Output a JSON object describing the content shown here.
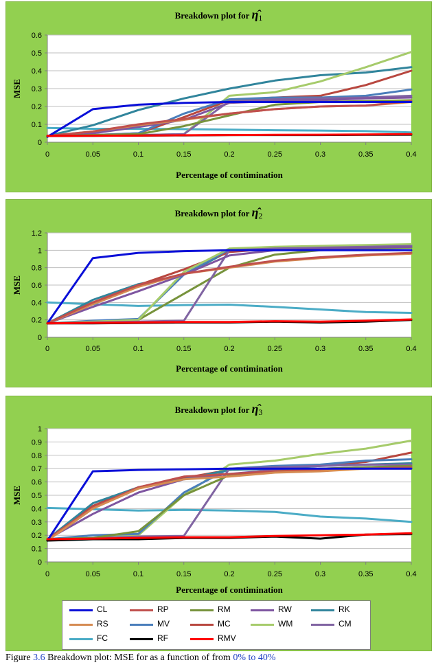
{
  "legend": [
    "CL",
    "RP",
    "RM",
    "RW",
    "RK",
    "RS",
    "MV",
    "MC",
    "WM",
    "CM",
    "FC",
    "RF",
    "RMV"
  ],
  "colors": {
    "CL": "#0A0FD8",
    "RP": "#C0504D",
    "RM": "#77933C",
    "RW": "#7E55A0",
    "RK": "#31859C",
    "RS": "#D58B52",
    "MV": "#4A7EBB",
    "MC": "#B8473F",
    "WM": "#A6CB6B",
    "CM": "#8064A2",
    "FC": "#4BACC6",
    "RF": "#000000",
    "RMV": "#FF0000"
  },
  "caption": {
    "prefix": "Figure",
    "number": "3.6",
    "text": "Breakdown plot: MSE for",
    "mid": "as a function of  from",
    "range": "0% to 40%"
  },
  "chart_data": [
    {
      "type": "line",
      "title": "Breakdown plot for",
      "title_symbol": "η̂",
      "title_sub": "1",
      "xlabel": "Percentage of contimination",
      "ylabel": "MSE",
      "x": [
        0,
        0.05,
        0.1,
        0.15,
        0.2,
        0.25,
        0.3,
        0.35,
        0.4
      ],
      "xticks": [
        "0",
        "0.05",
        "0.1",
        "0.15",
        "0.2",
        "0.25",
        "0.3",
        "0.35",
        "0.4"
      ],
      "ylim": [
        0,
        0.6
      ],
      "yticks": [
        "0",
        "0.1",
        "0.2",
        "0.3",
        "0.4",
        "0.5",
        "0.6"
      ],
      "series": [
        {
          "name": "FC",
          "values": [
            0.08,
            0.075,
            0.075,
            0.073,
            0.07,
            0.067,
            0.065,
            0.062,
            0.055
          ]
        },
        {
          "name": "RK",
          "values": [
            0.035,
            0.095,
            0.18,
            0.245,
            0.3,
            0.345,
            0.375,
            0.39,
            0.42
          ]
        },
        {
          "name": "WM",
          "values": [
            0.035,
            0.035,
            0.04,
            0.045,
            0.26,
            0.28,
            0.34,
            0.42,
            0.505
          ]
        },
        {
          "name": "MC",
          "values": [
            0.035,
            0.04,
            0.05,
            0.14,
            0.235,
            0.25,
            0.26,
            0.32,
            0.4
          ]
        },
        {
          "name": "MV",
          "values": [
            0.035,
            0.04,
            0.05,
            0.16,
            0.24,
            0.25,
            0.25,
            0.26,
            0.295
          ]
        },
        {
          "name": "CM",
          "values": [
            0.035,
            0.04,
            0.04,
            0.045,
            0.23,
            0.24,
            0.245,
            0.25,
            0.26
          ]
        },
        {
          "name": "RW",
          "values": [
            0.035,
            0.05,
            0.085,
            0.125,
            0.22,
            0.23,
            0.235,
            0.245,
            0.25
          ]
        },
        {
          "name": "RM",
          "values": [
            0.035,
            0.04,
            0.045,
            0.09,
            0.15,
            0.21,
            0.225,
            0.23,
            0.235
          ]
        },
        {
          "name": "RS",
          "values": [
            0.035,
            0.06,
            0.095,
            0.125,
            0.16,
            0.185,
            0.2,
            0.205,
            0.225
          ]
        },
        {
          "name": "RP",
          "values": [
            0.035,
            0.06,
            0.1,
            0.13,
            0.16,
            0.185,
            0.2,
            0.205,
            0.23
          ]
        },
        {
          "name": "CL",
          "values": [
            0.03,
            0.185,
            0.21,
            0.22,
            0.225,
            0.225,
            0.225,
            0.225,
            0.225
          ]
        },
        {
          "name": "RF",
          "values": [
            0.035,
            0.036,
            0.037,
            0.038,
            0.04,
            0.04,
            0.04,
            0.041,
            0.042
          ]
        },
        {
          "name": "RMV",
          "values": [
            0.035,
            0.036,
            0.037,
            0.039,
            0.04,
            0.041,
            0.042,
            0.043,
            0.045
          ]
        }
      ]
    },
    {
      "type": "line",
      "title": "Breakdown plot for",
      "title_symbol": "η̂",
      "title_sub": "2",
      "xlabel": "Percentage of contimination",
      "ylabel": "MSE",
      "x": [
        0,
        0.05,
        0.1,
        0.15,
        0.2,
        0.25,
        0.3,
        0.35,
        0.4
      ],
      "xticks": [
        "0",
        "0.05",
        "0.1",
        "0.15",
        "0.2",
        "0.25",
        "0.3",
        "0.35",
        "0.4"
      ],
      "ylim": [
        0,
        1.2
      ],
      "yticks": [
        "0",
        "0.2",
        "0.4",
        "0.6",
        "0.8",
        "1",
        "1.2"
      ],
      "series": [
        {
          "name": "FC",
          "values": [
            0.4,
            0.38,
            0.36,
            0.37,
            0.375,
            0.35,
            0.32,
            0.29,
            0.28
          ]
        },
        {
          "name": "RK",
          "values": [
            0.16,
            0.43,
            0.61,
            0.72,
            0.99,
            1.01,
            1.02,
            1.04,
            1.05
          ]
        },
        {
          "name": "RM",
          "values": [
            0.16,
            0.17,
            0.2,
            0.5,
            0.8,
            0.95,
            1.0,
            1.02,
            1.03
          ]
        },
        {
          "name": "MC",
          "values": [
            0.16,
            0.4,
            0.6,
            0.78,
            0.98,
            1.02,
            1.03,
            1.04,
            1.04
          ]
        },
        {
          "name": "MV",
          "values": [
            0.16,
            0.19,
            0.21,
            0.72,
            1.01,
            1.02,
            1.03,
            1.05,
            1.06
          ]
        },
        {
          "name": "WM",
          "values": [
            0.16,
            0.18,
            0.2,
            0.75,
            1.02,
            1.04,
            1.05,
            1.06,
            1.07
          ]
        },
        {
          "name": "CM",
          "values": [
            0.16,
            0.17,
            0.18,
            0.19,
            1.0,
            1.02,
            1.03,
            1.04,
            1.05
          ]
        },
        {
          "name": "RW",
          "values": [
            0.16,
            0.35,
            0.53,
            0.72,
            0.94,
            1.0,
            1.02,
            1.03,
            1.04
          ]
        },
        {
          "name": "RS",
          "values": [
            0.16,
            0.38,
            0.58,
            0.73,
            0.8,
            0.87,
            0.91,
            0.94,
            0.96
          ]
        },
        {
          "name": "RP",
          "values": [
            0.16,
            0.4,
            0.6,
            0.73,
            0.81,
            0.88,
            0.92,
            0.95,
            0.97
          ]
        },
        {
          "name": "CL",
          "values": [
            0.16,
            0.91,
            0.97,
            0.99,
            1.0,
            1.0,
            1.0,
            1.0,
            1.0
          ]
        },
        {
          "name": "RF",
          "values": [
            0.16,
            0.16,
            0.165,
            0.17,
            0.17,
            0.18,
            0.17,
            0.18,
            0.2
          ]
        },
        {
          "name": "RMV",
          "values": [
            0.16,
            0.165,
            0.17,
            0.175,
            0.175,
            0.185,
            0.18,
            0.19,
            0.205
          ]
        }
      ]
    },
    {
      "type": "line",
      "title": "Breakdown plot for",
      "title_symbol": "η̂",
      "title_sub": "3",
      "xlabel": "Percentage of contimination",
      "ylabel": "MSE",
      "x": [
        0,
        0.05,
        0.1,
        0.15,
        0.2,
        0.25,
        0.3,
        0.35,
        0.4
      ],
      "xticks": [
        "0",
        "0.05",
        "0.1",
        "0.15",
        "0.2",
        "0.25",
        "0.3",
        "0.35",
        "0.4"
      ],
      "ylim": [
        0,
        1
      ],
      "yticks": [
        "0",
        "0.1",
        "0.2",
        "0.3",
        "0.4",
        "0.5",
        "0.6",
        "0.7",
        "0.8",
        "0.9",
        "1"
      ],
      "series": [
        {
          "name": "FC",
          "values": [
            0.405,
            0.395,
            0.385,
            0.39,
            0.385,
            0.375,
            0.34,
            0.325,
            0.3
          ]
        },
        {
          "name": "WM",
          "values": [
            0.17,
            0.18,
            0.2,
            0.5,
            0.73,
            0.76,
            0.81,
            0.85,
            0.91
          ]
        },
        {
          "name": "MC",
          "values": [
            0.17,
            0.42,
            0.56,
            0.63,
            0.69,
            0.7,
            0.72,
            0.75,
            0.82
          ]
        },
        {
          "name": "MV",
          "values": [
            0.17,
            0.2,
            0.21,
            0.52,
            0.7,
            0.72,
            0.73,
            0.76,
            0.77
          ]
        },
        {
          "name": "RK",
          "values": [
            0.17,
            0.44,
            0.56,
            0.62,
            0.69,
            0.7,
            0.72,
            0.73,
            0.74
          ]
        },
        {
          "name": "CM",
          "values": [
            0.17,
            0.18,
            0.19,
            0.195,
            0.7,
            0.71,
            0.72,
            0.73,
            0.73
          ]
        },
        {
          "name": "RW",
          "values": [
            0.17,
            0.36,
            0.52,
            0.62,
            0.66,
            0.69,
            0.7,
            0.71,
            0.72
          ]
        },
        {
          "name": "RM",
          "values": [
            0.17,
            0.18,
            0.23,
            0.5,
            0.65,
            0.68,
            0.7,
            0.71,
            0.72
          ]
        },
        {
          "name": "RP",
          "values": [
            0.17,
            0.41,
            0.56,
            0.64,
            0.66,
            0.68,
            0.69,
            0.7,
            0.71
          ]
        },
        {
          "name": "RS",
          "values": [
            0.16,
            0.4,
            0.55,
            0.62,
            0.64,
            0.67,
            0.68,
            0.7,
            0.7
          ]
        },
        {
          "name": "CL",
          "values": [
            0.16,
            0.68,
            0.69,
            0.695,
            0.7,
            0.7,
            0.7,
            0.7,
            0.7
          ]
        },
        {
          "name": "RF",
          "values": [
            0.16,
            0.17,
            0.17,
            0.18,
            0.18,
            0.19,
            0.175,
            0.205,
            0.21
          ]
        },
        {
          "name": "RMV",
          "values": [
            0.17,
            0.175,
            0.18,
            0.185,
            0.185,
            0.195,
            0.2,
            0.205,
            0.215
          ]
        }
      ]
    }
  ]
}
